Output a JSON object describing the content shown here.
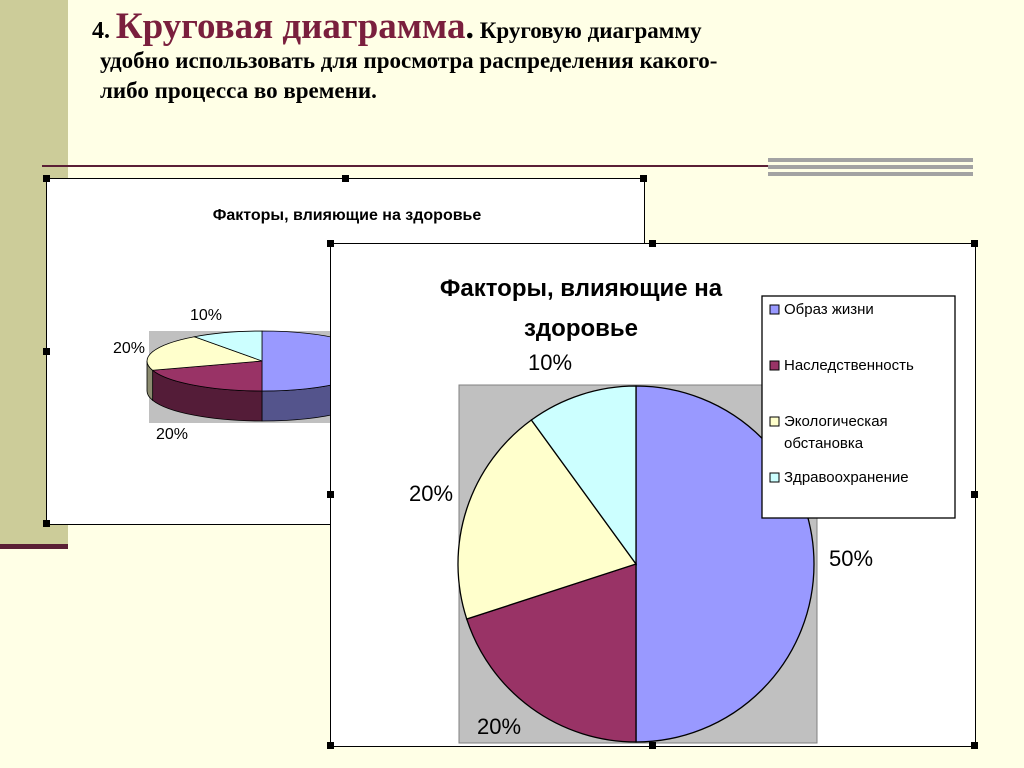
{
  "heading": {
    "number": "4.",
    "title": "Круговая диаграмма",
    "dot": ".",
    "text_line1": "Круговую диаграмму",
    "text_line2": "удобно использовать для просмотра распределения какого-",
    "text_line3": "либо процесса во времени."
  },
  "colors": {
    "background": "#ffffe6",
    "accent": "#7a1f3d",
    "plot_area": "#c0c0c0"
  },
  "chart_data": [
    {
      "type": "pie",
      "style": "3d",
      "title": "Факторы, влияющие на здоровье",
      "categories": [
        "Образ жизни",
        "Наследственность",
        "Экологическая обстановка",
        "Здравоохранение"
      ],
      "values": [
        50,
        20,
        20,
        10
      ],
      "labels": [
        "50%",
        "20%",
        "20%",
        "10%"
      ],
      "colors": [
        "#9999ff",
        "#993366",
        "#ffffcc",
        "#ccffff"
      ],
      "legend": "none"
    },
    {
      "type": "pie",
      "title": "Факторы, влияющие на здоровье",
      "title_lines": [
        "Факторы, влияющие на",
        "здоровье"
      ],
      "categories": [
        "Образ жизни",
        "Наследственность",
        "Экологическая обстановка",
        "Здравоохранение"
      ],
      "legend_lines": [
        [
          "Образ жизни"
        ],
        [
          "Наследственность"
        ],
        [
          "Экологическая",
          "обстановка"
        ],
        [
          "Здравоохранение"
        ]
      ],
      "values": [
        50,
        20,
        20,
        10
      ],
      "labels": [
        "50%",
        "20%",
        "20%",
        "10%"
      ],
      "colors": [
        "#9999ff",
        "#993366",
        "#ffffcc",
        "#ccffff"
      ],
      "legend": "top-right"
    }
  ]
}
